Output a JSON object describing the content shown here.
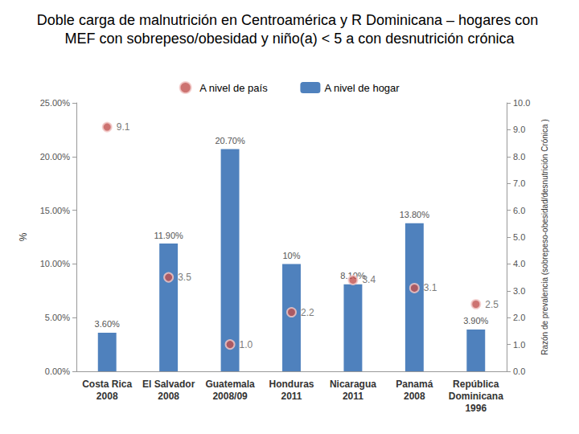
{
  "chart_data": {
    "type": "bar",
    "title": "Doble carga de malnutrición en Centroamérica y R Dominicana – hogares con MEF con sobrepeso/obesidad y niño(a) < 5 a con desnutrición crónica",
    "categories": [
      "Costa Rica\n2008",
      "El Salvador\n2008",
      "Guatemala\n2008/09",
      "Honduras\n2011",
      "Nicaragua\n2011",
      "Panamá\n2008",
      "República\nDominicana\n1996"
    ],
    "y_label": "%",
    "y2_label": "Razón de prevalencia (sobrepeso-obesidad/desnutrición Crónica )",
    "series": [
      {
        "name": "A nivel de hogar",
        "type": "bar",
        "color": "#4f81bd",
        "values": [
          3.6,
          11.9,
          20.7,
          10,
          8.1,
          13.8,
          3.9
        ],
        "value_labels": [
          "3.60%",
          "11.90%",
          "20.70%",
          "10%",
          "8.10%",
          "13.80%",
          "3.90%"
        ]
      },
      {
        "name": "A nivel de país",
        "type": "scatter",
        "axis": "y2",
        "color": "#c0504d",
        "marker": "circle",
        "values": [
          9.1,
          3.5,
          1.0,
          2.2,
          3.4,
          3.1,
          2.5
        ],
        "value_labels": [
          "9.1",
          "3.5",
          "1.0",
          "2.2",
          "3.4",
          "3.1",
          "2.5"
        ]
      }
    ],
    "ylim": [
      0,
      25
    ],
    "yticks": [
      {
        "value": 0,
        "label": "0.00%"
      },
      {
        "value": 5,
        "label": "5.00%"
      },
      {
        "value": 10,
        "label": "10.00%"
      },
      {
        "value": 15,
        "label": "15.00%"
      },
      {
        "value": 20,
        "label": "20.00%"
      },
      {
        "value": 25,
        "label": "25.00%"
      }
    ],
    "y2lim": [
      0,
      10
    ],
    "y2ticks": [
      {
        "value": 0,
        "label": "0.0"
      },
      {
        "value": 1,
        "label": "1.0"
      },
      {
        "value": 2,
        "label": "2.0"
      },
      {
        "value": 3,
        "label": "3.0"
      },
      {
        "value": 4,
        "label": "4.0"
      },
      {
        "value": 5,
        "label": "5.0"
      },
      {
        "value": 6,
        "label": "6.0"
      },
      {
        "value": 7,
        "label": "7.0"
      },
      {
        "value": 8,
        "label": "8.0"
      },
      {
        "value": 9,
        "label": "9.0"
      },
      {
        "value": 10,
        "label": "10.0"
      }
    ],
    "data_labels": true,
    "legend": "top",
    "grid": false
  }
}
